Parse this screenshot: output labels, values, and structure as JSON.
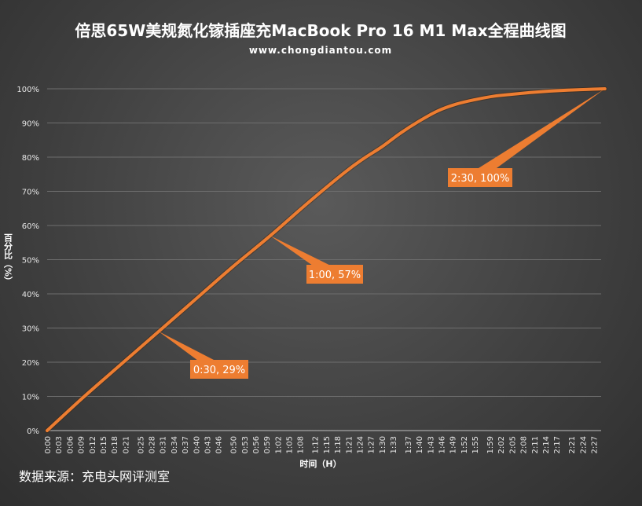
{
  "chart_data": {
    "type": "line",
    "title": "倍思65W美规氮化镓插座充MacBook Pro 16 M1 Max全程曲线图",
    "subtitle": "www.chongdiantou.com",
    "xlabel": "时间（H）",
    "ylabel": "百分比（%）",
    "source": "数据来源：充电头网评测室",
    "xlim": [
      0,
      149
    ],
    "ylim": [
      0,
      100
    ],
    "y_ticks": [
      "0%",
      "10%",
      "20%",
      "30%",
      "40%",
      "50%",
      "60%",
      "70%",
      "80%",
      "90%",
      "100%"
    ],
    "x_tick_labels": [
      "0:00",
      "0:03",
      "0:06",
      "0:09",
      "0:12",
      "0:15",
      "0:18",
      "0:21",
      "0:25",
      "0:28",
      "0:31",
      "0:34",
      "0:37",
      "0:40",
      "0:43",
      "0:46",
      "0:50",
      "0:53",
      "0:56",
      "0:59",
      "1:02",
      "1:05",
      "1:08",
      "1:12",
      "1:15",
      "1:18",
      "1:21",
      "1:24",
      "1:27",
      "1:30",
      "1:33",
      "1:37",
      "1:40",
      "1:43",
      "1:46",
      "1:49",
      "1:52",
      "1:55",
      "1:59",
      "2:02",
      "2:05",
      "2:08",
      "2:11",
      "2:14",
      "2:17",
      "2:21",
      "2:24",
      "2:27"
    ],
    "x_tick_minutes": [
      0,
      3,
      6,
      9,
      12,
      15,
      18,
      21,
      25,
      28,
      31,
      34,
      37,
      40,
      43,
      46,
      50,
      53,
      56,
      59,
      62,
      65,
      68,
      72,
      75,
      78,
      81,
      84,
      87,
      90,
      93,
      97,
      100,
      103,
      106,
      109,
      112,
      115,
      119,
      122,
      125,
      128,
      131,
      134,
      137,
      141,
      144,
      147
    ],
    "grid": true,
    "legend": "none",
    "series": [
      {
        "color": "#ed7d31",
        "x_minutes": [
          0,
          10,
          20,
          30,
          40,
          50,
          60,
          70,
          80,
          85,
          90,
          95,
          100,
          105,
          110,
          115,
          120,
          125,
          130,
          135,
          140,
          145,
          150
        ],
        "values": [
          0,
          10,
          19.5,
          29,
          38.5,
          48,
          57,
          66.5,
          75.5,
          79.5,
          83,
          87,
          90.5,
          93.5,
          95.5,
          96.8,
          97.8,
          98.4,
          98.9,
          99.3,
          99.6,
          99.8,
          100
        ]
      }
    ],
    "annotations": [
      {
        "label": "0:30, 29%",
        "x_minutes": 30,
        "y": 29
      },
      {
        "label": "1:00, 57%",
        "x_minutes": 60,
        "y": 57
      },
      {
        "label": "2:30, 100%",
        "x_minutes": 150,
        "y": 100
      }
    ]
  }
}
